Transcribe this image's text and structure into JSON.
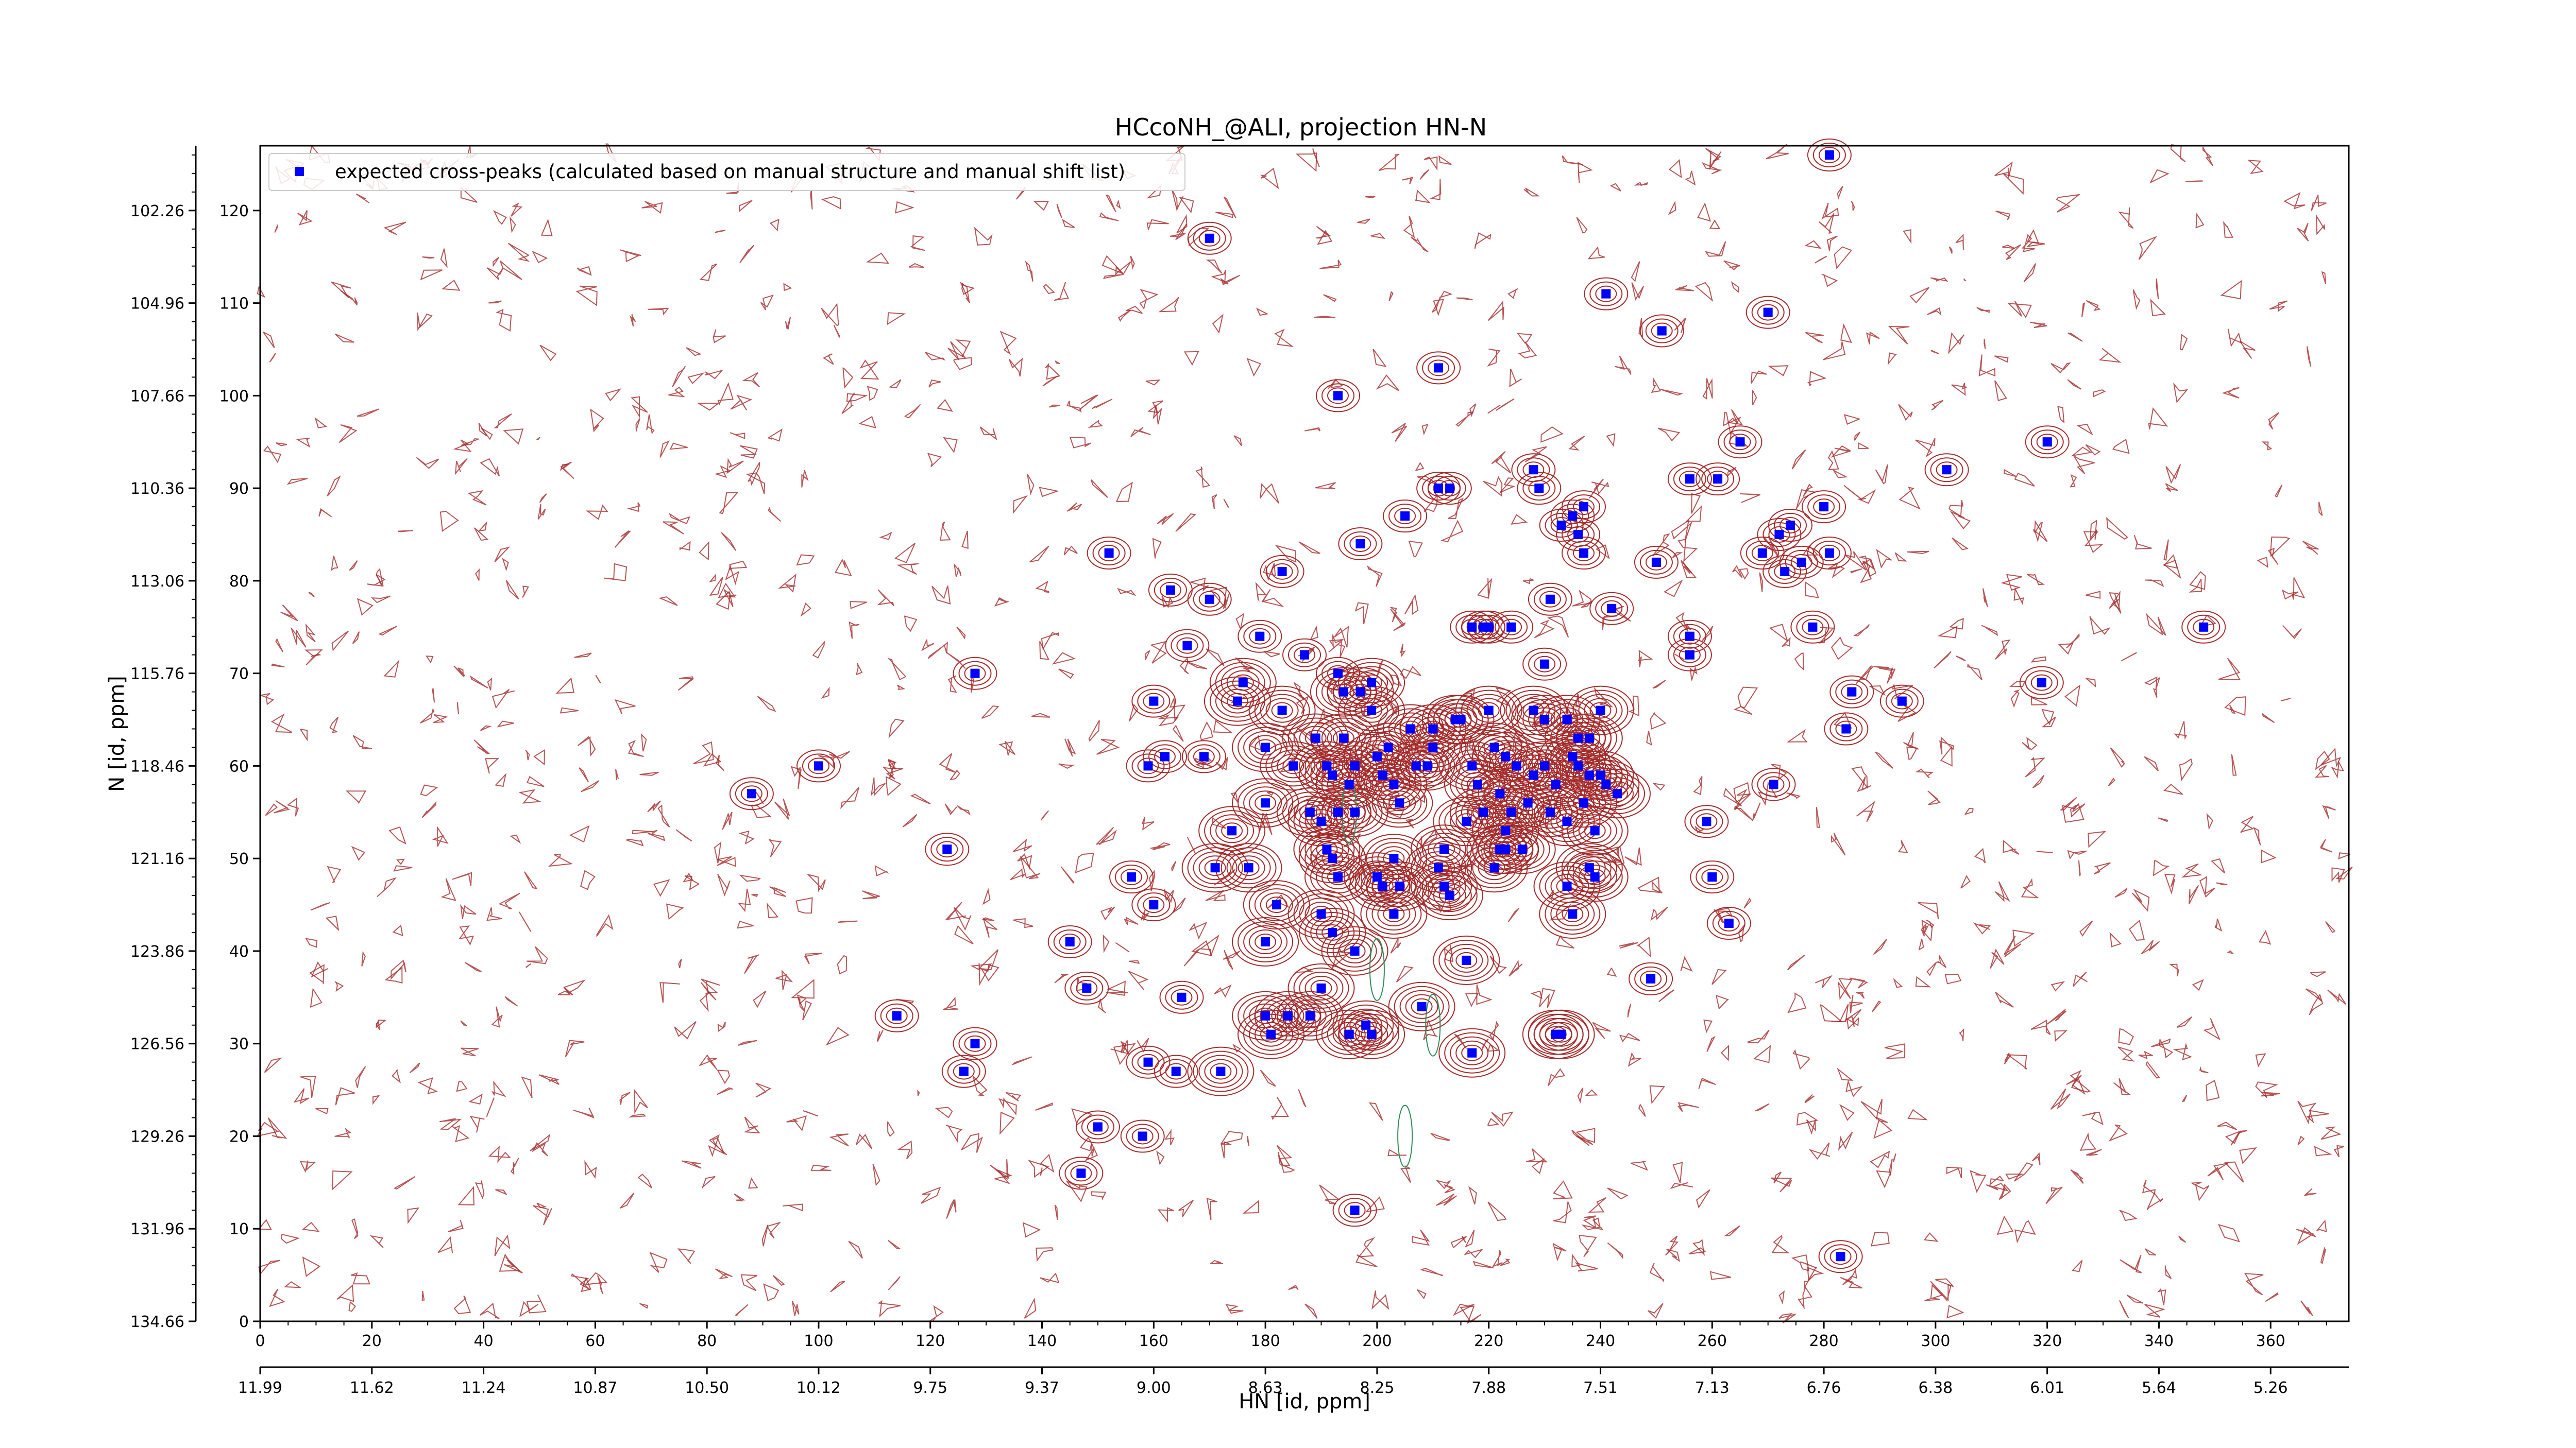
{
  "chart_data": {
    "type": "scatter",
    "title": "HCcoNH_@ALI, projection HN-N",
    "xlabel": "HN [id, ppm]",
    "ylabel": "N [id, ppm]",
    "xlim": [
      0,
      374
    ],
    "ylim": [
      0,
      127
    ],
    "x_ticks": [
      0,
      20,
      40,
      60,
      80,
      100,
      120,
      140,
      160,
      180,
      200,
      220,
      240,
      260,
      280,
      300,
      320,
      340,
      360
    ],
    "y_ticks": [
      0,
      10,
      20,
      30,
      40,
      50,
      60,
      70,
      80,
      90,
      100,
      110,
      120
    ],
    "x_ppm_tick_labels": [
      "11.99",
      "11.62",
      "11.24",
      "10.87",
      "10.50",
      "10.12",
      "9.75",
      "9.37",
      "9.00",
      "8.63",
      "8.25",
      "7.88",
      "7.51",
      "7.13",
      "6.76",
      "6.38",
      "6.01",
      "5.64",
      "5.26"
    ],
    "y_ppm_tick_labels": [
      "134.66",
      "131.96",
      "129.26",
      "126.56",
      "123.86",
      "121.16",
      "118.46",
      "115.76",
      "113.06",
      "110.36",
      "107.66",
      "104.96",
      "102.26"
    ],
    "grid": false,
    "legend_position": "top-left",
    "colors": {
      "peaks": "#0000ff",
      "positive_contours": "#a52a2a",
      "negative_contours": "#2e8b57"
    },
    "series": [
      {
        "name": "expected cross-peaks (calculated based on manual structure and manual shift list)",
        "points": [
          [
            88,
            57
          ],
          [
            100,
            60
          ],
          [
            114,
            33
          ],
          [
            123,
            51
          ],
          [
            126,
            27
          ],
          [
            128,
            30
          ],
          [
            128,
            70
          ],
          [
            145,
            41
          ],
          [
            147,
            16
          ],
          [
            148,
            36
          ],
          [
            150,
            21
          ],
          [
            152,
            83
          ],
          [
            156,
            48
          ],
          [
            158,
            20
          ],
          [
            159,
            28
          ],
          [
            159,
            60
          ],
          [
            160,
            67
          ],
          [
            160,
            45
          ],
          [
            162,
            61
          ],
          [
            163,
            79
          ],
          [
            164,
            27
          ],
          [
            165,
            35
          ],
          [
            166,
            73
          ],
          [
            169,
            61
          ],
          [
            170,
            78
          ],
          [
            170,
            117
          ],
          [
            171,
            49
          ],
          [
            172,
            27
          ],
          [
            174,
            53
          ],
          [
            175,
            67
          ],
          [
            176,
            69
          ],
          [
            177,
            49
          ],
          [
            179,
            74
          ],
          [
            180,
            41
          ],
          [
            180,
            62
          ],
          [
            180,
            56
          ],
          [
            180,
            33
          ],
          [
            181,
            31
          ],
          [
            182,
            45
          ],
          [
            183,
            66
          ],
          [
            183,
            81
          ],
          [
            184,
            33
          ],
          [
            185,
            60
          ],
          [
            187,
            72
          ],
          [
            188,
            55
          ],
          [
            188,
            33
          ],
          [
            189,
            63
          ],
          [
            190,
            54
          ],
          [
            190,
            36
          ],
          [
            190,
            44
          ],
          [
            191,
            51
          ],
          [
            191,
            60
          ],
          [
            192,
            50
          ],
          [
            192,
            42
          ],
          [
            192,
            59
          ],
          [
            193,
            48
          ],
          [
            193,
            70
          ],
          [
            193,
            55
          ],
          [
            193,
            100
          ],
          [
            194,
            63
          ],
          [
            194,
            68
          ],
          [
            195,
            58
          ],
          [
            195,
            31
          ],
          [
            196,
            40
          ],
          [
            196,
            60
          ],
          [
            196,
            55
          ],
          [
            196,
            12
          ],
          [
            197,
            68
          ],
          [
            197,
            84
          ],
          [
            198,
            32
          ],
          [
            199,
            31
          ],
          [
            199,
            66
          ],
          [
            199,
            69
          ],
          [
            200,
            48
          ],
          [
            200,
            61
          ],
          [
            201,
            59
          ],
          [
            201,
            47
          ],
          [
            202,
            62
          ],
          [
            203,
            44
          ],
          [
            203,
            50
          ],
          [
            203,
            58
          ],
          [
            204,
            56
          ],
          [
            204,
            47
          ],
          [
            205,
            87
          ],
          [
            206,
            64
          ],
          [
            207,
            60
          ],
          [
            208,
            34
          ],
          [
            209,
            60
          ],
          [
            210,
            62
          ],
          [
            210,
            64
          ],
          [
            211,
            103
          ],
          [
            211,
            90
          ],
          [
            211,
            49
          ],
          [
            212,
            47
          ],
          [
            212,
            51
          ],
          [
            213,
            90
          ],
          [
            213,
            46
          ],
          [
            214,
            65
          ],
          [
            215,
            65
          ],
          [
            216,
            54
          ],
          [
            216,
            39
          ],
          [
            217,
            29
          ],
          [
            217,
            60
          ],
          [
            217,
            75
          ],
          [
            218,
            58
          ],
          [
            219,
            75
          ],
          [
            219,
            55
          ],
          [
            220,
            66
          ],
          [
            220,
            75
          ],
          [
            221,
            49
          ],
          [
            221,
            62
          ],
          [
            222,
            51
          ],
          [
            222,
            57
          ],
          [
            223,
            51
          ],
          [
            223,
            53
          ],
          [
            223,
            61
          ],
          [
            224,
            55
          ],
          [
            224,
            75
          ],
          [
            225,
            60
          ],
          [
            226,
            51
          ],
          [
            227,
            56
          ],
          [
            228,
            59
          ],
          [
            228,
            66
          ],
          [
            228,
            92
          ],
          [
            229,
            90
          ],
          [
            230,
            71
          ],
          [
            230,
            65
          ],
          [
            230,
            60
          ],
          [
            231,
            78
          ],
          [
            231,
            55
          ],
          [
            232,
            58
          ],
          [
            232,
            31
          ],
          [
            233,
            86
          ],
          [
            233,
            31
          ],
          [
            234,
            54
          ],
          [
            234,
            47
          ],
          [
            234,
            65
          ],
          [
            235,
            61
          ],
          [
            235,
            87
          ],
          [
            235,
            44
          ],
          [
            236,
            63
          ],
          [
            236,
            60
          ],
          [
            236,
            85
          ],
          [
            237,
            88
          ],
          [
            237,
            83
          ],
          [
            237,
            56
          ],
          [
            238,
            63
          ],
          [
            238,
            59
          ],
          [
            238,
            49
          ],
          [
            239,
            48
          ],
          [
            239,
            53
          ],
          [
            240,
            59
          ],
          [
            240,
            66
          ],
          [
            241,
            58
          ],
          [
            241,
            111
          ],
          [
            242,
            77
          ],
          [
            243,
            57
          ],
          [
            249,
            37
          ],
          [
            250,
            82
          ],
          [
            251,
            107
          ],
          [
            256,
            91
          ],
          [
            256,
            74
          ],
          [
            256,
            72
          ],
          [
            259,
            54
          ],
          [
            260,
            48
          ],
          [
            261,
            91
          ],
          [
            263,
            43
          ],
          [
            265,
            95
          ],
          [
            269,
            83
          ],
          [
            270,
            109
          ],
          [
            271,
            58
          ],
          [
            272,
            85
          ],
          [
            273,
            81
          ],
          [
            274,
            86
          ],
          [
            276,
            82
          ],
          [
            278,
            75
          ],
          [
            280,
            88
          ],
          [
            281,
            126
          ],
          [
            281,
            83
          ],
          [
            283,
            7
          ],
          [
            284,
            64
          ],
          [
            285,
            68
          ],
          [
            294,
            67
          ],
          [
            302,
            92
          ],
          [
            319,
            69
          ],
          [
            320,
            95
          ],
          [
            348,
            75
          ]
        ]
      }
    ]
  }
}
